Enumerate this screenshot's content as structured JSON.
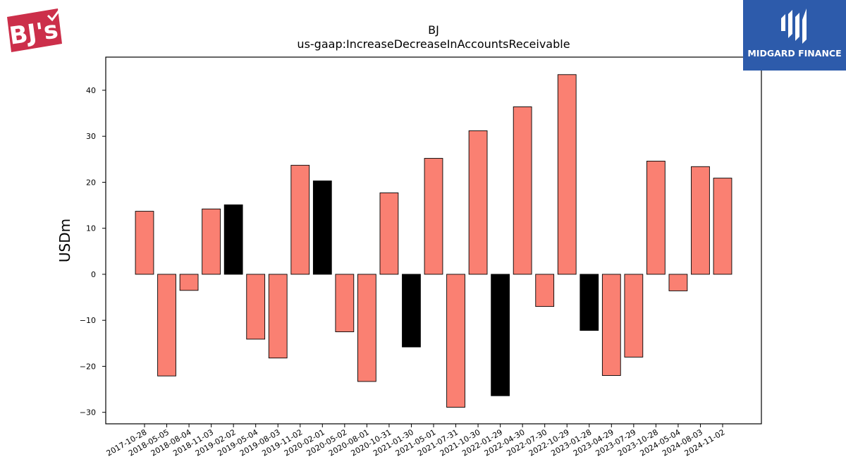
{
  "brand": {
    "logo_text": "BJ's",
    "logo_color": "#cc2f4a"
  },
  "partner": {
    "name": "MIDGARD FINANCE",
    "color": "#2d5bab"
  },
  "chart_data": {
    "type": "bar",
    "title": "BJ",
    "subtitle": "us-gaap:IncreaseDecreaseInAccountsReceivable",
    "ylabel": "USDm",
    "xlabel": "",
    "ylim": [
      -32.5,
      47.2
    ],
    "yticks": [
      -30,
      -20,
      -10,
      0,
      10,
      20,
      30,
      40
    ],
    "grid": false,
    "colors": {
      "default": "#fa8072",
      "highlight": "#000000",
      "edge": "#000000"
    },
    "categories": [
      "2017-10-28",
      "2018-05-05",
      "2018-08-04",
      "2018-11-03",
      "2019-02-02",
      "2019-05-04",
      "2019-08-03",
      "2019-11-02",
      "2020-02-01",
      "2020-05-02",
      "2020-08-01",
      "2020-10-31",
      "2021-01-30",
      "2021-05-01",
      "2021-07-31",
      "2021-10-30",
      "2022-01-29",
      "2022-04-30",
      "2022-07-30",
      "2022-10-29",
      "2023-01-28",
      "2023-04-29",
      "2023-07-29",
      "2023-10-28",
      "2024-05-04",
      "2024-08-03",
      "2024-11-02"
    ],
    "values": [
      13.7,
      -22.1,
      -3.5,
      14.2,
      15.1,
      -14.1,
      -18.2,
      23.7,
      20.3,
      -12.5,
      -23.3,
      17.7,
      -15.8,
      25.2,
      -28.9,
      31.2,
      -26.4,
      36.4,
      -7.0,
      43.4,
      -12.2,
      -22.0,
      -18.0,
      24.6,
      -3.6,
      23.4,
      20.9
    ],
    "highlight": [
      false,
      false,
      false,
      false,
      true,
      false,
      false,
      false,
      true,
      false,
      false,
      false,
      true,
      false,
      false,
      false,
      true,
      false,
      false,
      false,
      true,
      false,
      false,
      false,
      false,
      false,
      false
    ]
  }
}
